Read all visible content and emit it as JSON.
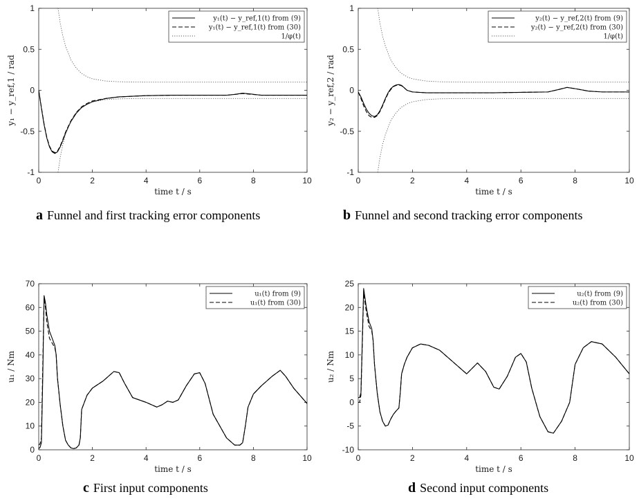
{
  "chart_data": [
    {
      "type": "line",
      "caption_letter": "a",
      "caption_text": "Funnel and first tracking error components",
      "xlabel": "time t / s",
      "ylabel": "y₁ − y_ref,1 / rad",
      "xlim": [
        0,
        10
      ],
      "ylim": [
        -1,
        1
      ],
      "xticks": [
        "0",
        "2",
        "4",
        "6",
        "8",
        "10"
      ],
      "yticks": [
        "1",
        "0.5",
        "0",
        "-0.5",
        "-1"
      ],
      "legend_position": "top-right",
      "series": [
        {
          "name": "y₁(t) − y_ref,1(t) from (9)",
          "style": "solid",
          "x": [
            0,
            0.1,
            0.2,
            0.3,
            0.4,
            0.5,
            0.6,
            0.7,
            0.8,
            0.9,
            1.0,
            1.2,
            1.4,
            1.6,
            1.8,
            2.0,
            2.5,
            3.0,
            4.0,
            5.0,
            6.0,
            7.0,
            7.3,
            7.6,
            7.9,
            8.3,
            9.0,
            10.0
          ],
          "y": [
            0,
            -0.22,
            -0.42,
            -0.58,
            -0.69,
            -0.75,
            -0.77,
            -0.75,
            -0.69,
            -0.61,
            -0.52,
            -0.38,
            -0.28,
            -0.21,
            -0.17,
            -0.14,
            -0.1,
            -0.08,
            -0.065,
            -0.06,
            -0.06,
            -0.06,
            -0.05,
            -0.035,
            -0.045,
            -0.06,
            -0.06,
            -0.06
          ]
        },
        {
          "name": "y₁(t) − y_ref,1(t) from (30)",
          "style": "dashed",
          "x": [
            0,
            0.1,
            0.2,
            0.3,
            0.4,
            0.5,
            0.6,
            0.7,
            0.8,
            0.9,
            1.0,
            1.2,
            1.4,
            1.6,
            1.8,
            2.0,
            2.5,
            3.0,
            4.0,
            5.0,
            6.0,
            7.0,
            7.3,
            7.6,
            7.9,
            8.3,
            9.0,
            10.0
          ],
          "y": [
            0,
            -0.21,
            -0.41,
            -0.57,
            -0.68,
            -0.74,
            -0.76,
            -0.74,
            -0.68,
            -0.6,
            -0.51,
            -0.37,
            -0.27,
            -0.2,
            -0.16,
            -0.13,
            -0.1,
            -0.08,
            -0.065,
            -0.06,
            -0.06,
            -0.06,
            -0.05,
            -0.04,
            -0.048,
            -0.06,
            -0.06,
            -0.06
          ]
        },
        {
          "name": "1/φ(t)",
          "style": "dotted",
          "funnel": true,
          "x": [
            0.72,
            0.8,
            0.9,
            1.0,
            1.2,
            1.4,
            1.6,
            1.8,
            2.0,
            2.5,
            3.0,
            3.5,
            4.0,
            5.0,
            6.0,
            8.0,
            10.0
          ],
          "y": [
            1.0,
            0.82,
            0.66,
            0.54,
            0.37,
            0.27,
            0.205,
            0.165,
            0.14,
            0.113,
            0.104,
            0.101,
            0.1,
            0.1,
            0.1,
            0.1,
            0.1
          ]
        }
      ]
    },
    {
      "type": "line",
      "caption_letter": "b",
      "caption_text": "Funnel and second tracking error components",
      "xlabel": "time t / s",
      "ylabel": "y₂ − y_ref,2 / rad",
      "xlim": [
        0,
        10
      ],
      "ylim": [
        -1,
        1
      ],
      "xticks": [
        "0",
        "2",
        "4",
        "6",
        "8",
        "10"
      ],
      "yticks": [
        "1",
        "0.5",
        "0",
        "-0.5",
        "-1"
      ],
      "legend_position": "top-right",
      "series": [
        {
          "name": "y₂(t) − y_ref,2(t) from (9)",
          "style": "solid",
          "x": [
            0,
            0.1,
            0.2,
            0.3,
            0.4,
            0.5,
            0.6,
            0.7,
            0.8,
            0.9,
            1.0,
            1.1,
            1.2,
            1.3,
            1.4,
            1.5,
            1.6,
            1.7,
            1.8,
            2.0,
            2.5,
            3.0,
            4.0,
            5.0,
            6.0,
            7.0,
            7.4,
            7.7,
            8.0,
            8.5,
            9.0,
            10.0
          ],
          "y": [
            -0.02,
            -0.08,
            -0.16,
            -0.23,
            -0.28,
            -0.31,
            -0.32,
            -0.3,
            -0.25,
            -0.18,
            -0.1,
            -0.03,
            0.02,
            0.05,
            0.065,
            0.07,
            0.06,
            0.03,
            0.0,
            -0.02,
            -0.03,
            -0.03,
            -0.03,
            -0.03,
            -0.025,
            -0.02,
            0.01,
            0.035,
            0.02,
            -0.01,
            -0.02,
            -0.02
          ]
        },
        {
          "name": "y₂(t) − y_ref,2(t) from (30)",
          "style": "dashed",
          "x": [
            0,
            0.1,
            0.2,
            0.3,
            0.4,
            0.5,
            0.6,
            0.7,
            0.8,
            0.9,
            1.0,
            1.1,
            1.2,
            1.3,
            1.4,
            1.5,
            1.6,
            1.7,
            1.8,
            2.0,
            2.5,
            3.0,
            4.0,
            5.0,
            6.0,
            7.0,
            7.4,
            7.7,
            8.0,
            8.5,
            9.0,
            10.0
          ],
          "y": [
            -0.02,
            -0.1,
            -0.19,
            -0.26,
            -0.31,
            -0.33,
            -0.33,
            -0.31,
            -0.26,
            -0.19,
            -0.11,
            -0.04,
            0.01,
            0.045,
            0.06,
            0.065,
            0.055,
            0.03,
            0.0,
            -0.02,
            -0.03,
            -0.03,
            -0.03,
            -0.03,
            -0.025,
            -0.02,
            0.01,
            0.035,
            0.02,
            -0.01,
            -0.02,
            -0.02
          ]
        },
        {
          "name": "1/φ(t)",
          "style": "dotted",
          "funnel": true,
          "x": [
            0.72,
            0.8,
            0.9,
            1.0,
            1.2,
            1.4,
            1.6,
            1.8,
            2.0,
            2.5,
            3.0,
            3.5,
            4.0,
            5.0,
            6.0,
            8.0,
            10.0
          ],
          "y": [
            1.0,
            0.82,
            0.66,
            0.54,
            0.37,
            0.27,
            0.205,
            0.165,
            0.14,
            0.113,
            0.104,
            0.101,
            0.1,
            0.1,
            0.1,
            0.1,
            0.1
          ]
        }
      ]
    },
    {
      "type": "line",
      "caption_letter": "c",
      "caption_text": "First input components",
      "xlabel": "time t / s",
      "ylabel": "u₁ / Nm",
      "xlim": [
        0,
        10
      ],
      "ylim": [
        0,
        70
      ],
      "xticks": [
        "0",
        "2",
        "4",
        "6",
        "8",
        "10"
      ],
      "yticks": [
        "70",
        "60",
        "50",
        "40",
        "30",
        "20",
        "10",
        "0"
      ],
      "legend_position": "top-right",
      "series": [
        {
          "name": "u₁(t) from (9)",
          "style": "solid",
          "x": [
            0,
            0.05,
            0.1,
            0.15,
            0.2,
            0.25,
            0.3,
            0.4,
            0.5,
            0.6,
            0.65,
            0.7,
            0.8,
            0.9,
            1.0,
            1.1,
            1.2,
            1.3,
            1.4,
            1.5,
            1.55,
            1.6,
            1.7,
            1.8,
            2.0,
            2.4,
            2.8,
            3.0,
            3.2,
            3.5,
            4.0,
            4.4,
            4.6,
            4.8,
            5.0,
            5.2,
            5.5,
            5.8,
            6.0,
            6.2,
            6.5,
            7.0,
            7.3,
            7.5,
            7.6,
            7.7,
            7.8,
            8.0,
            8.3,
            8.7,
            9.0,
            9.2,
            9.5,
            10.0
          ],
          "y": [
            0.5,
            1,
            3,
            30,
            65,
            62,
            57,
            50,
            47,
            44,
            40,
            30,
            19,
            10,
            4,
            2,
            0.8,
            0.5,
            0.8,
            2,
            5,
            17,
            20,
            23,
            26,
            29,
            33,
            32.5,
            28,
            22,
            20,
            18,
            19,
            20.5,
            20,
            21,
            27,
            32,
            32.5,
            28,
            15,
            5,
            2,
            2,
            3,
            10,
            18,
            23.5,
            27,
            31,
            33.5,
            31,
            26,
            19.5
          ]
        },
        {
          "name": "u₁(t) from (30)",
          "style": "dashed",
          "x": [
            0,
            0.05,
            0.1,
            0.15,
            0.2,
            0.25,
            0.3,
            0.4,
            0.5,
            0.6,
            0.65,
            0.7,
            0.8,
            0.9,
            1.0,
            1.1,
            1.2,
            1.3,
            1.4,
            1.5,
            1.55,
            1.6,
            1.7,
            1.8,
            2.0,
            2.4,
            2.8,
            3.0,
            3.2,
            3.5,
            4.0,
            4.4,
            4.6,
            4.8,
            5.0,
            5.2,
            5.5,
            5.8,
            6.0,
            6.2,
            6.5,
            7.0,
            7.3,
            7.5,
            7.6,
            7.7,
            7.8,
            8.0,
            8.3,
            8.7,
            9.0,
            9.2,
            9.5,
            10.0
          ],
          "y": [
            2,
            2.5,
            5,
            35,
            64,
            60,
            54,
            47,
            45,
            43,
            40,
            30,
            19,
            10,
            4,
            2,
            0.8,
            0.5,
            0.8,
            2,
            5,
            17,
            20,
            23,
            26,
            29,
            33,
            32.5,
            28,
            22,
            20,
            18,
            19,
            20.5,
            20,
            21,
            27,
            32,
            32.5,
            28,
            15,
            5,
            2,
            2,
            3,
            10,
            18,
            23.5,
            27,
            31,
            33.5,
            31,
            26,
            19.5
          ]
        }
      ]
    },
    {
      "type": "line",
      "caption_letter": "d",
      "caption_text": "Second input components",
      "xlabel": "time t / s",
      "ylabel": "u₂ / Nm",
      "xlim": [
        0,
        10
      ],
      "ylim": [
        -10,
        25
      ],
      "xticks": [
        "0",
        "2",
        "4",
        "6",
        "8",
        "10"
      ],
      "yticks": [
        "25",
        "20",
        "15",
        "10",
        "5",
        "0",
        "-5",
        "-10"
      ],
      "legend_position": "top-right",
      "series": [
        {
          "name": "u₂(t) from (9)",
          "style": "solid",
          "x": [
            0,
            0.05,
            0.1,
            0.15,
            0.2,
            0.25,
            0.3,
            0.4,
            0.5,
            0.55,
            0.6,
            0.7,
            0.8,
            0.9,
            1.0,
            1.1,
            1.2,
            1.3,
            1.4,
            1.5,
            1.55,
            1.6,
            1.7,
            1.8,
            2.0,
            2.3,
            2.6,
            3.0,
            3.5,
            4.0,
            4.4,
            4.7,
            5.0,
            5.2,
            5.5,
            5.8,
            6.0,
            6.2,
            6.4,
            6.7,
            7.0,
            7.2,
            7.5,
            7.8,
            8.0,
            8.3,
            8.6,
            9.0,
            9.5,
            10.0
          ],
          "y": [
            1,
            1,
            2,
            13,
            24,
            22,
            20,
            17,
            15.5,
            13,
            8,
            2,
            -2,
            -4,
            -5,
            -4.8,
            -3.5,
            -2.5,
            -1.8,
            -1.2,
            2,
            6,
            8,
            9.5,
            11.5,
            12.3,
            12,
            11,
            8.5,
            6,
            8.3,
            6.5,
            3.2,
            2.8,
            5.5,
            9.5,
            10.3,
            8.5,
            3,
            -3,
            -6.2,
            -6.5,
            -4,
            0,
            8,
            11.5,
            12.8,
            12.3,
            9.5,
            6
          ]
        },
        {
          "name": "u₂(t) from (30)",
          "style": "dashed",
          "x": [
            0,
            0.05,
            0.1,
            0.15,
            0.2,
            0.25,
            0.3,
            0.4,
            0.5,
            0.55,
            0.6,
            0.7,
            0.8,
            0.9,
            1.0,
            1.1,
            1.2,
            1.3,
            1.4,
            1.5,
            1.55,
            1.6,
            1.7,
            1.8,
            2.0,
            2.3,
            2.6,
            3.0,
            3.5,
            4.0,
            4.4,
            4.7,
            5.0,
            5.2,
            5.5,
            5.8,
            6.0,
            6.2,
            6.4,
            6.7,
            7.0,
            7.2,
            7.5,
            7.8,
            8.0,
            8.3,
            8.6,
            9.0,
            9.5,
            10.0
          ],
          "y": [
            0,
            0,
            1.5,
            12,
            23,
            21,
            19,
            16,
            15,
            13,
            8,
            2,
            -2,
            -4,
            -5,
            -4.8,
            -3.5,
            -2.5,
            -1.8,
            -1.2,
            2,
            6,
            8,
            9.5,
            11.5,
            12.3,
            12,
            11,
            8.5,
            6,
            8.3,
            6.5,
            3.2,
            2.8,
            5.5,
            9.5,
            10.3,
            8.5,
            3,
            -3,
            -6.2,
            -6.5,
            -4,
            0,
            8,
            11.5,
            12.8,
            12.3,
            9.5,
            6
          ]
        }
      ]
    }
  ]
}
